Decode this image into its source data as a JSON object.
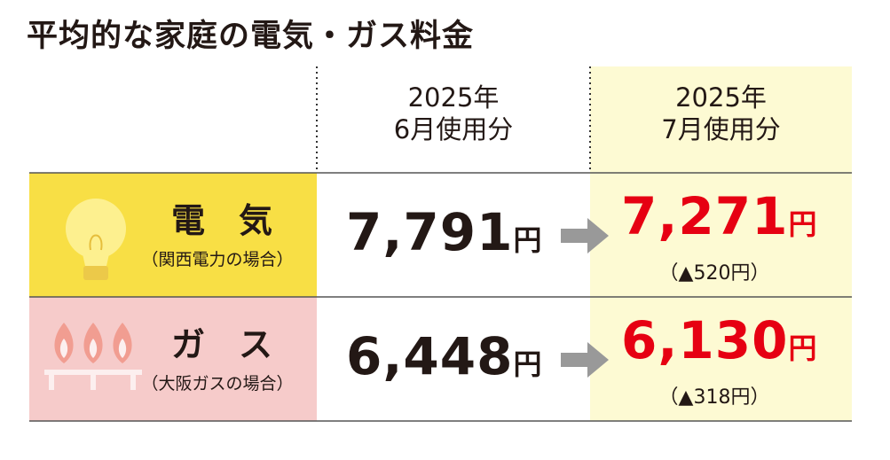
{
  "title": "平均的な家庭の電気・ガス料金",
  "table": {
    "headers": [
      [
        "2025年",
        "6月使用分"
      ],
      [
        "2025年",
        "7月使用分"
      ]
    ],
    "rows": [
      {
        "label": "電　気",
        "sublabel": "（関西電力の場合）",
        "june": "7,791",
        "june_unit": "円",
        "july": "7,271",
        "july_unit": "円",
        "change": "（▲520円）"
      },
      {
        "label": "ガ　ス",
        "sublabel": "（大阪ガスの場合）",
        "june": "6,448",
        "june_unit": "円",
        "july": "6,130",
        "july_unit": "円",
        "change": "（▲318円）"
      }
    ]
  }
}
